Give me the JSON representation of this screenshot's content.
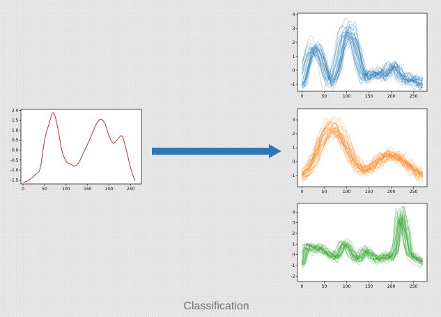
{
  "caption": "Classification",
  "arrow": {
    "color": "#2e75b6"
  },
  "chart_data": [
    {
      "id": "input",
      "type": "line",
      "color": "#d62728",
      "xticks": [
        "0",
        "50",
        "100",
        "150",
        "200",
        "250"
      ],
      "xtick_values": [
        0,
        50,
        100,
        150,
        200,
        250
      ],
      "yticks": [
        "2.0",
        "1.5",
        "1.0",
        "0.5",
        "0.0",
        "-0.5",
        "-1.0",
        "-1.5"
      ],
      "ytick_values": [
        2.0,
        1.5,
        1.0,
        0.5,
        0.0,
        -0.5,
        -1.0,
        -1.5
      ],
      "xlim": [
        -5,
        275
      ],
      "ylim": [
        -1.7,
        2.05
      ],
      "series": [
        {
          "x": [
            0,
            10,
            20,
            30,
            40,
            50,
            60,
            70,
            80,
            90,
            100,
            110,
            120,
            130,
            140,
            150,
            160,
            170,
            180,
            190,
            200,
            210,
            220,
            230,
            240,
            250,
            260
          ],
          "y": [
            -1.62,
            -1.55,
            -1.4,
            -1.2,
            -0.9,
            0.5,
            1.3,
            1.88,
            1.2,
            0.0,
            -0.55,
            -0.7,
            -0.8,
            -0.6,
            -0.15,
            0.3,
            0.8,
            1.3,
            1.55,
            1.35,
            0.7,
            0.35,
            0.55,
            0.7,
            0.0,
            -0.9,
            -1.55
          ]
        }
      ]
    },
    {
      "id": "class-1",
      "type": "line",
      "color": "#1f77b4",
      "xticks": [
        "0",
        "50",
        "100",
        "150",
        "200",
        "250"
      ],
      "xtick_values": [
        0,
        50,
        100,
        150,
        200,
        250
      ],
      "yticks": [
        "4",
        "3",
        "2",
        "1",
        "0",
        "-1"
      ],
      "ytick_values": [
        4,
        3,
        2,
        1,
        0,
        -1
      ],
      "xlim": [
        -10,
        280
      ],
      "ylim": [
        -1.5,
        4.1
      ],
      "template": {
        "x": [
          0,
          10,
          20,
          30,
          40,
          50,
          60,
          70,
          80,
          90,
          100,
          110,
          120,
          130,
          140,
          150,
          160,
          170,
          180,
          190,
          200,
          210,
          220,
          230,
          240,
          250,
          260,
          270
        ],
        "y": [
          -0.9,
          0.5,
          1.5,
          1.6,
          1.1,
          0.0,
          -0.8,
          -0.6,
          0.5,
          2.3,
          2.8,
          2.6,
          1.6,
          0.1,
          -0.6,
          -0.3,
          -0.3,
          -0.2,
          -0.4,
          -0.1,
          0.4,
          0.1,
          -0.5,
          -0.7,
          -0.6,
          -0.7,
          -0.9,
          -1.0
        ]
      }
    },
    {
      "id": "class-2",
      "type": "line",
      "color": "#ff7f0e",
      "xticks": [
        "0",
        "50",
        "100",
        "150",
        "200",
        "250"
      ],
      "xtick_values": [
        0,
        50,
        100,
        150,
        200,
        250
      ],
      "yticks": [
        "3",
        "2",
        "1",
        "0",
        "-1"
      ],
      "ytick_values": [
        3,
        2,
        1,
        0,
        -1
      ],
      "xlim": [
        -10,
        280
      ],
      "ylim": [
        -1.8,
        3.8
      ],
      "template": {
        "x": [
          0,
          10,
          20,
          30,
          40,
          50,
          60,
          70,
          80,
          90,
          100,
          110,
          120,
          130,
          140,
          150,
          160,
          170,
          180,
          190,
          200,
          210,
          220,
          230,
          240,
          250,
          260,
          270
        ],
        "y": [
          -1.0,
          -0.8,
          -0.3,
          0.4,
          1.3,
          2.0,
          2.4,
          2.5,
          2.3,
          1.8,
          1.2,
          0.5,
          -0.1,
          -0.5,
          -0.6,
          -0.5,
          -0.3,
          0.0,
          0.3,
          0.5,
          0.5,
          0.4,
          0.3,
          0.0,
          -0.3,
          -0.6,
          -0.8,
          -1.0
        ]
      }
    },
    {
      "id": "class-3",
      "type": "line",
      "color": "#2ca02c",
      "xticks": [
        "0",
        "50",
        "100",
        "150",
        "200",
        "250"
      ],
      "xtick_values": [
        0,
        50,
        100,
        150,
        200,
        250
      ],
      "yticks": [
        "4",
        "3",
        "2",
        "1",
        "0",
        "-1",
        "-2"
      ],
      "ytick_values": [
        4,
        3,
        2,
        1,
        0,
        -1,
        -2
      ],
      "xlim": [
        -10,
        280
      ],
      "ylim": [
        -2.5,
        4.8
      ],
      "template": {
        "x": [
          0,
          10,
          20,
          30,
          40,
          50,
          60,
          70,
          80,
          90,
          100,
          110,
          120,
          130,
          140,
          150,
          160,
          170,
          180,
          190,
          200,
          210,
          220,
          230,
          240,
          250,
          260,
          270
        ],
        "y": [
          -1.0,
          0.8,
          0.6,
          0.4,
          0.7,
          0.3,
          0.0,
          -0.2,
          -0.3,
          0.8,
          1.0,
          0.2,
          -0.4,
          -0.5,
          0.4,
          0.2,
          -0.3,
          -0.5,
          -0.4,
          -0.1,
          -0.5,
          0.5,
          4.0,
          3.0,
          0.1,
          -0.3,
          -0.5,
          -0.8
        ]
      }
    }
  ]
}
